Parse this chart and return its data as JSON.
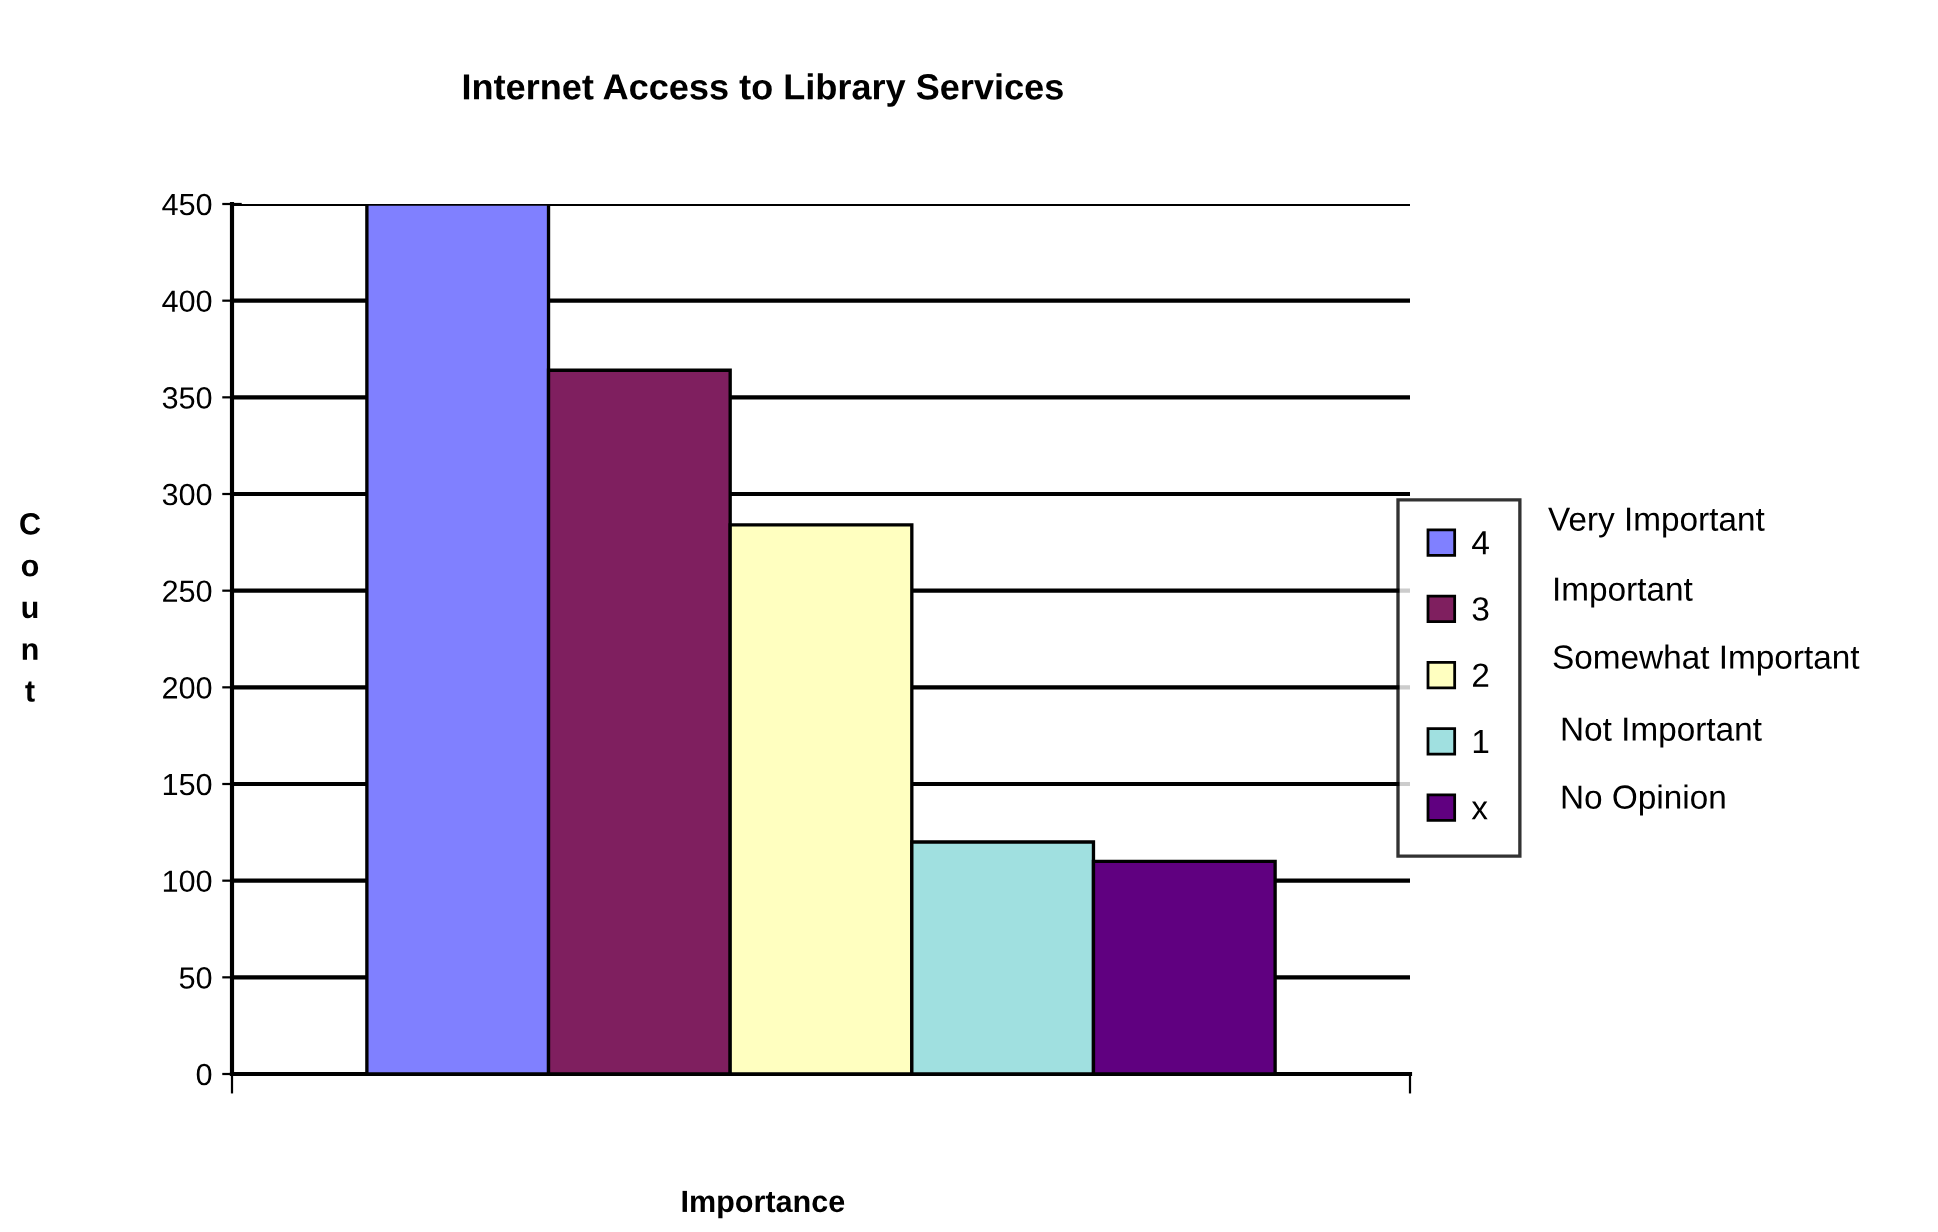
{
  "chart_data": {
    "type": "bar",
    "title": "Internet Access to Library Services",
    "xlabel": "Importance",
    "ylabel": "Count",
    "categories": [
      null
    ],
    "series": [
      {
        "name": "4",
        "color": "#8080ff",
        "values": [
          450
        ]
      },
      {
        "name": "3",
        "color": "#7f1f5f",
        "values": [
          364
        ]
      },
      {
        "name": "2",
        "color": "#ffffc0",
        "values": [
          284
        ]
      },
      {
        "name": "1",
        "color": "#a0e0e0",
        "values": [
          120
        ]
      },
      {
        "name": "x",
        "color": "#600080",
        "values": [
          110
        ]
      }
    ],
    "ylim": [
      0,
      450
    ],
    "yticks": [
      0,
      50,
      100,
      150,
      200,
      250,
      300,
      350,
      400,
      450
    ],
    "grid": "y",
    "legend": "right",
    "annotations": [
      "Very Important",
      "Important",
      "Somewhat Important",
      "Not Important",
      "No Opinion"
    ]
  }
}
